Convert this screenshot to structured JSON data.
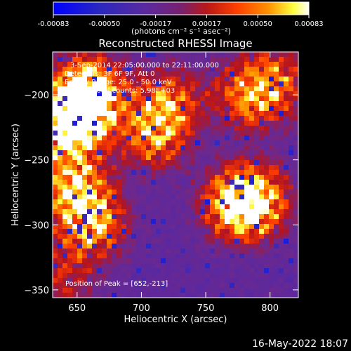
{
  "chart_data": {
    "type": "heatmap",
    "title": "Reconstructed RHESSI Image",
    "xlabel": "Heliocentric X (arcsec)",
    "ylabel": "Heliocentric Y (arcsec)",
    "xlim": [
      631,
      822
    ],
    "ylim": [
      -356,
      -167
    ],
    "x_ticks": [
      650,
      700,
      750,
      800
    ],
    "y_ticks": [
      -200,
      -250,
      -300,
      -350
    ],
    "colorbar": {
      "range": [
        -0.00083,
        0.00083
      ],
      "ticks": [
        "-0.00083",
        "-0.00050",
        "-0.00017",
        "0.00017",
        "0.00050",
        "0.00083"
      ],
      "unit_label": "(photons cm⁻² s⁻¹ asec⁻²)",
      "colormap": [
        "#0000ff",
        "#2020c8",
        "#40207a",
        "#6a2aa0",
        "#c8281e",
        "#ff8000",
        "#ffff60",
        "#ffffff"
      ]
    },
    "annotations": [
      "3-Sep-2014 22:05:00.000 to 22:11:00.000",
      "Detectors: 3F 6F 9F, Att 0",
      "Energy Range: 25.0 - 50.0 keV",
      "Clean    Total counts: 5.98E+03"
    ],
    "peak_label": "Position of Peak = [652,-213]",
    "sources": [
      {
        "x": 640,
        "y": -225,
        "strength": 1.0
      },
      {
        "x": 655,
        "y": -210,
        "strength": 0.9
      },
      {
        "x": 660,
        "y": -195,
        "strength": 0.8
      },
      {
        "x": 648,
        "y": -272,
        "strength": 0.85
      },
      {
        "x": 662,
        "y": -300,
        "strength": 0.75
      },
      {
        "x": 710,
        "y": -230,
        "strength": 0.7
      },
      {
        "x": 720,
        "y": -205,
        "strength": 0.55
      },
      {
        "x": 775,
        "y": -285,
        "strength": 0.9
      },
      {
        "x": 790,
        "y": -280,
        "strength": 0.7
      },
      {
        "x": 782,
        "y": -200,
        "strength": 0.65
      },
      {
        "x": 805,
        "y": -190,
        "strength": 0.5
      },
      {
        "x": 640,
        "y": -340,
        "strength": 0.35
      }
    ]
  },
  "footer": {
    "timestamp": "16-May-2022 18:07"
  }
}
